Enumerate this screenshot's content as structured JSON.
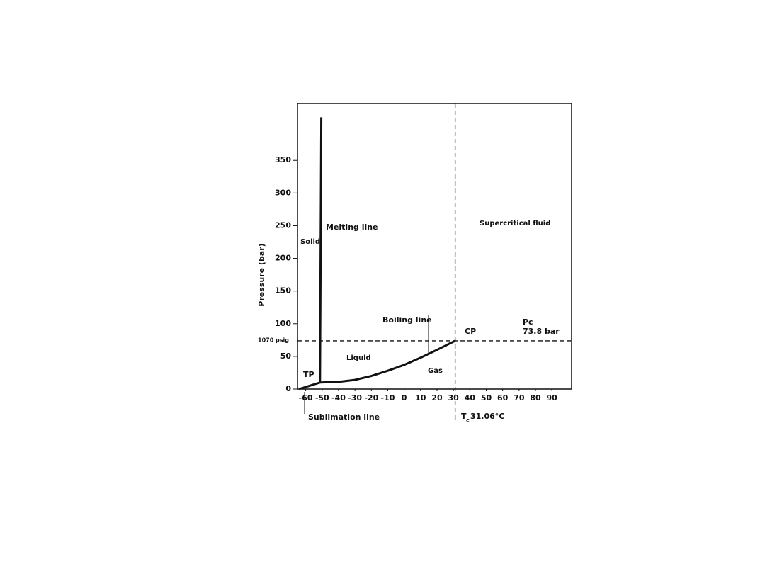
{
  "chart_data": {
    "type": "line",
    "y_label": "Pressure (bar)",
    "xlim": [
      -65,
      102
    ],
    "ylim": [
      0,
      437
    ],
    "xticks": [
      -60,
      -50,
      -40,
      -30,
      -20,
      -10,
      0,
      10,
      20,
      30,
      40,
      50,
      60,
      70,
      80,
      90
    ],
    "yticks": [
      0,
      50,
      100,
      150,
      200,
      250,
      300,
      350
    ],
    "critical_point": {
      "x": 31.06,
      "y": 73.8
    },
    "series": [
      {
        "name": "Sublimation line",
        "color": "#111111",
        "x": [
          -64,
          -51.3
        ],
        "values": [
          0,
          10
        ]
      },
      {
        "name": "Melting line",
        "color": "#111111",
        "x": [
          -51.3,
          -50.5
        ],
        "values": [
          10,
          416
        ]
      },
      {
        "name": "Boiling line",
        "color": "#111111",
        "x": [
          -51.3,
          -40,
          -30,
          -20,
          -10,
          0,
          10,
          20,
          31.06
        ],
        "values": [
          10,
          11,
          14,
          20,
          28,
          37,
          48,
          60,
          73.8
        ]
      }
    ],
    "annotations": [
      "Solid",
      "Supercritical fluid",
      "Liquid",
      "Gas",
      "TP",
      "CP",
      "Pc",
      "73.8 bar",
      "1070 psig",
      "T",
      "c",
      "31.06°C"
    ]
  }
}
